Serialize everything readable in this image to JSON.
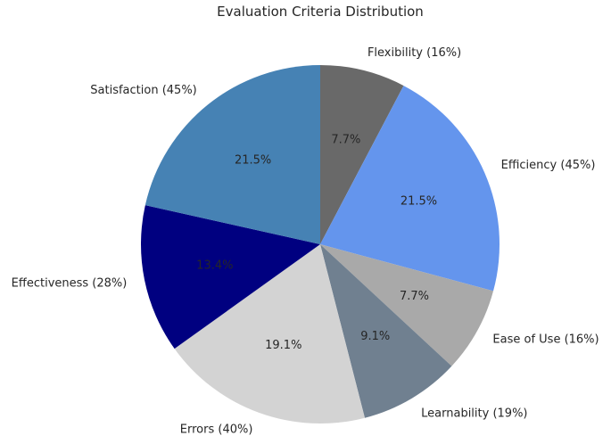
{
  "chart_data": {
    "type": "pie",
    "title": "Evaluation Criteria Distribution",
    "start_angle_deg": 90,
    "direction": "clockwise",
    "slices": [
      {
        "label": "Flexibility (16%)",
        "value": 7.7,
        "pct_text": "7.7%",
        "color": "#696969"
      },
      {
        "label": "Efficiency (45%)",
        "value": 21.5,
        "pct_text": "21.5%",
        "color": "#6495ED"
      },
      {
        "label": "Ease of Use (16%)",
        "value": 7.7,
        "pct_text": "7.7%",
        "color": "#A9A9A9"
      },
      {
        "label": "Learnability (19%)",
        "value": 9.1,
        "pct_text": "9.1%",
        "color": "#708090"
      },
      {
        "label": "Errors (40%)",
        "value": 19.1,
        "pct_text": "19.1%",
        "color": "#D3D3D3"
      },
      {
        "label": "Effectiveness (28%)",
        "value": 13.4,
        "pct_text": "13.4%",
        "color": "#000080"
      },
      {
        "label": "Satisfaction (45%)",
        "value": 21.5,
        "pct_text": "21.5%",
        "color": "#4682B4"
      }
    ]
  }
}
